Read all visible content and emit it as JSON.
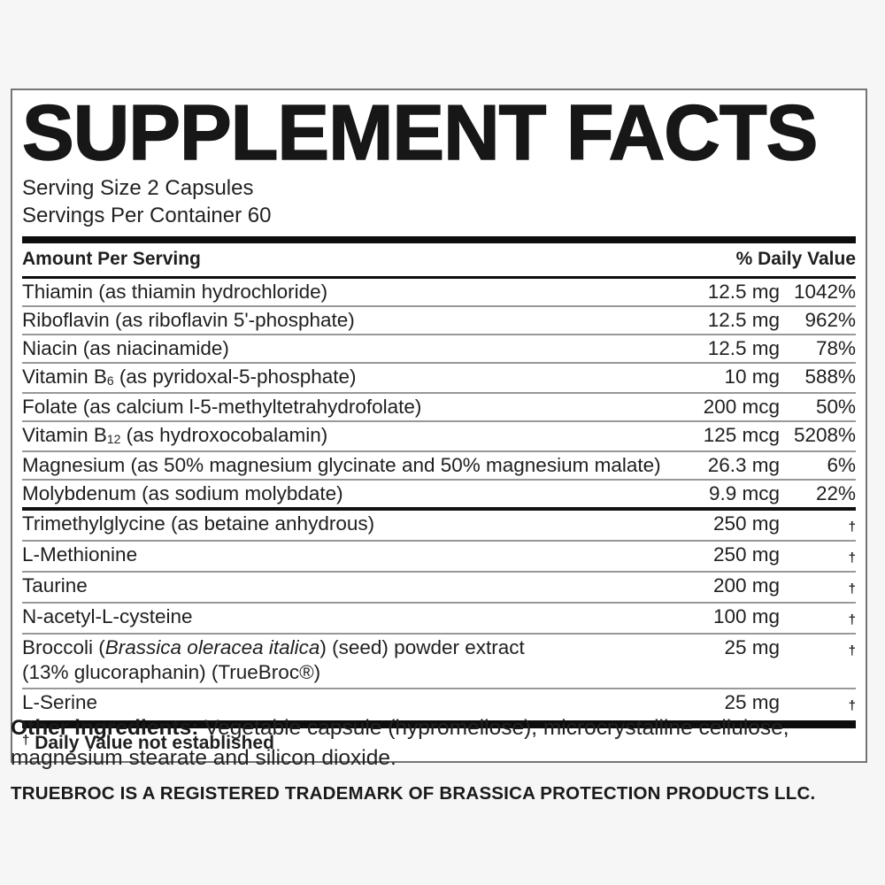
{
  "label": {
    "title": "SUPPLEMENT FACTS",
    "serving_size": "Serving Size 2 Capsules",
    "servings_per_container": "Servings Per Container 60",
    "columns": {
      "left": "Amount Per Serving",
      "right": "% Daily Value"
    },
    "rows": [
      {
        "section": 1,
        "name": [
          {
            "t": "Thiamin (as thiamin hydrochloride)"
          }
        ],
        "amount": "12.5 mg",
        "dv": "1042%"
      },
      {
        "section": 1,
        "name": [
          {
            "t": "Riboflavin (as riboflavin 5'-phosphate)"
          }
        ],
        "amount": "12.5 mg",
        "dv": "962%"
      },
      {
        "section": 1,
        "name": [
          {
            "t": "Niacin (as niacinamide)"
          }
        ],
        "amount": "12.5 mg",
        "dv": "78%"
      },
      {
        "section": 1,
        "name": [
          {
            "t": "Vitamin B"
          },
          {
            "t": "6",
            "s": "sub"
          },
          {
            "t": " (as pyridoxal-5-phosphate)"
          }
        ],
        "amount": "10 mg",
        "dv": "588%"
      },
      {
        "section": 1,
        "name": [
          {
            "t": "Folate (as calcium l-5-methyltetrahydrofolate)"
          }
        ],
        "amount": "200 mcg",
        "dv": "50%"
      },
      {
        "section": 1,
        "name": [
          {
            "t": "Vitamin B"
          },
          {
            "t": "12",
            "s": "sub"
          },
          {
            "t": " (as hydroxocobalamin)"
          }
        ],
        "amount": "125 mcg",
        "dv": "5208%"
      },
      {
        "section": 1,
        "name": [
          {
            "t": "Magnesium (as 50% magnesium glycinate and 50% magnesium malate)"
          }
        ],
        "amount": "26.3 mg",
        "dv": "6%"
      },
      {
        "section": 1,
        "name": [
          {
            "t": "Molybdenum (as sodium molybdate)"
          }
        ],
        "amount": "9.9 mcg",
        "dv": "22%"
      },
      {
        "section": 2,
        "name": [
          {
            "t": "Trimethylglycine (as betaine anhydrous)"
          }
        ],
        "amount": "250 mg",
        "dv": "†"
      },
      {
        "section": 2,
        "name": [
          {
            "t": "L-Methionine"
          }
        ],
        "amount": "250 mg",
        "dv": "†"
      },
      {
        "section": 2,
        "name": [
          {
            "t": "Taurine"
          }
        ],
        "amount": "200 mg",
        "dv": "†"
      },
      {
        "section": 2,
        "name": [
          {
            "t": "N-acetyl-L-cysteine"
          }
        ],
        "amount": "100 mg",
        "dv": "†"
      },
      {
        "section": 2,
        "name": [
          {
            "t": "Broccoli ("
          },
          {
            "t": "Brassica oleracea italica",
            "s": "i"
          },
          {
            "t": ") (seed) powder extract"
          }
        ],
        "name_line2": "(13% glucoraphanin) (TrueBroc®)",
        "amount": "25 mg",
        "dv": "†"
      },
      {
        "section": 2,
        "name": [
          {
            "t": "L-Serine"
          }
        ],
        "amount": "25 mg",
        "dv": "†"
      }
    ],
    "footnote_dagger": "†",
    "footnote_text": "Daily Value not established"
  },
  "footer": {
    "other_ingredients_label": "Other ingredients:",
    "other_ingredients_text": " Vegetable capsule (hypromellose), microcrystalline cellulose, magnesium stearate and silicon dioxide.",
    "trademark": "TRUEBROC IS A REGISTERED TRADEMARK OF BRASSICA PROTECTION PRODUCTS LLC."
  },
  "colors": {
    "page_background": "#f6f6f6",
    "panel_background": "#ffffff",
    "text": "#1f1f1f",
    "bars": "#0d0d0d",
    "row_separator": "#989898",
    "panel_border": "#757575"
  }
}
